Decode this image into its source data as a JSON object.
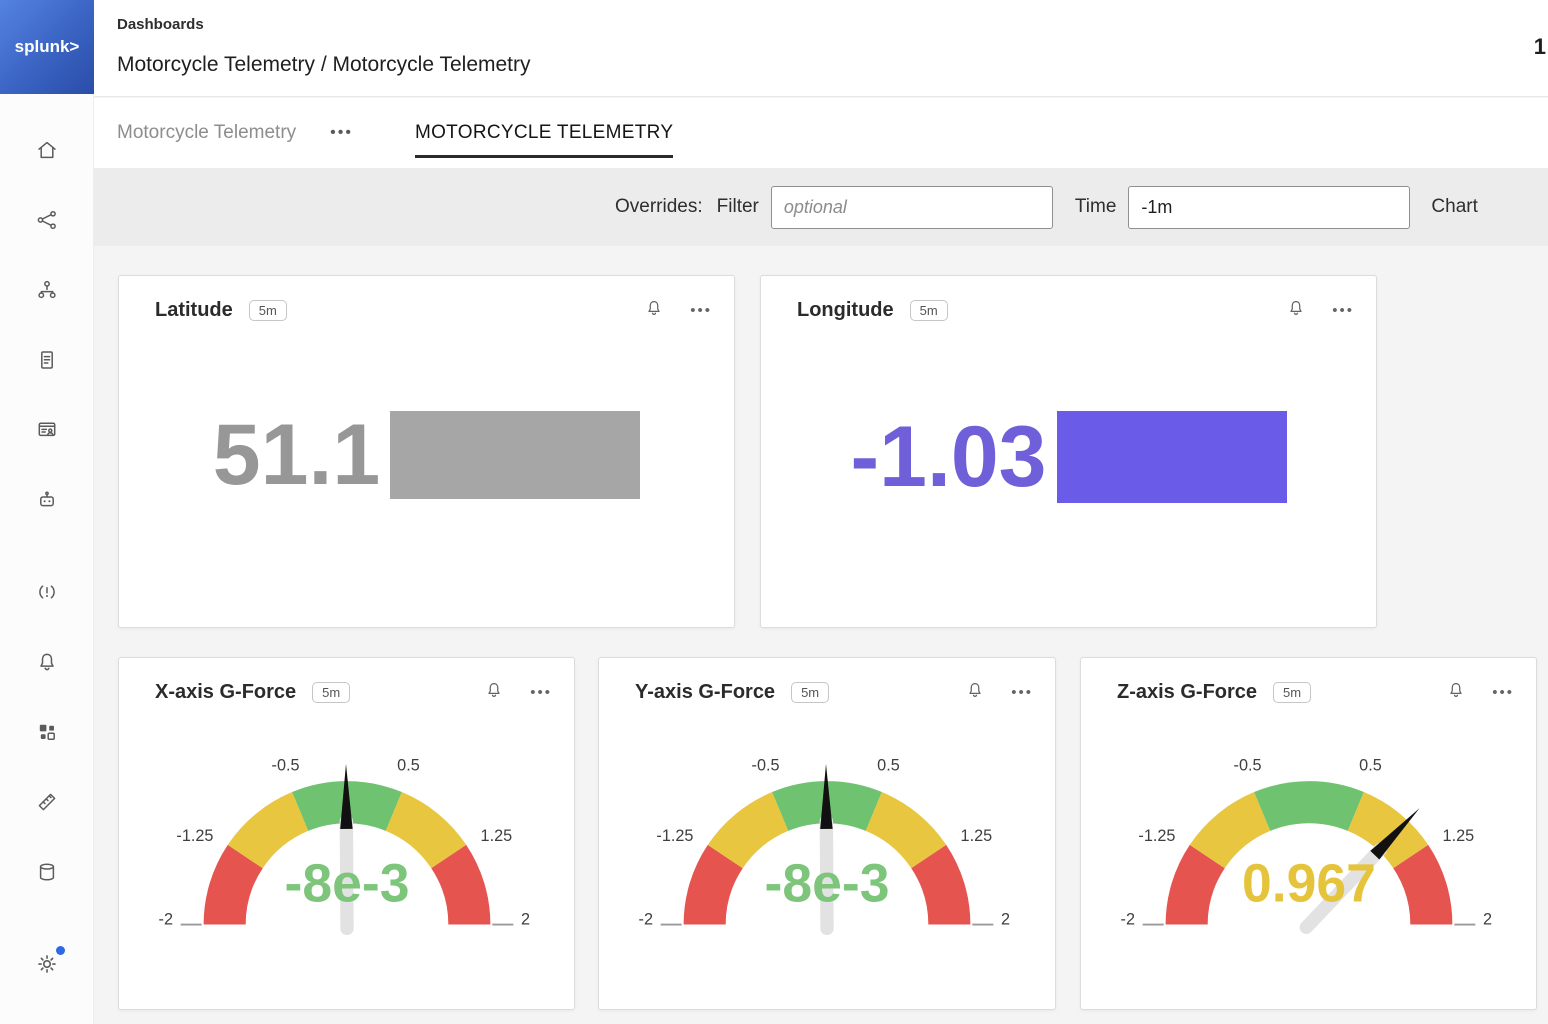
{
  "brand": {
    "logo": "splunk>"
  },
  "header": {
    "breadcrumb": "Dashboards",
    "title": "Motorcycle Telemetry / Motorcycle Telemetry",
    "corner": "1"
  },
  "tabs": {
    "dashboard_name": "Motorcycle Telemetry",
    "menu_ellipsis": "•••",
    "active_tab": "MOTORCYCLE TELEMETRY"
  },
  "overrides": {
    "label": "Overrides:",
    "filter_label": "Filter",
    "filter_placeholder": "optional",
    "time_label": "Time",
    "time_value": "-1m",
    "chart_label": "Chart"
  },
  "sidebar": {
    "icons": [
      "home-icon",
      "data-stream-icon",
      "hierarchy-icon",
      "report-icon",
      "dashboard-user-icon",
      "automation-icon",
      "alert-icon",
      "bell-icon",
      "apps-grid-icon",
      "ruler-icon",
      "storage-icon",
      "settings-gear-icon"
    ]
  },
  "ui": {
    "ellipsis": "•••"
  },
  "cards": {
    "latitude": {
      "title": "Latitude",
      "refresh": "5m",
      "value": "51.1",
      "value_color": "#979797",
      "block_color": "#a6a6a6"
    },
    "longitude": {
      "title": "Longitude",
      "refresh": "5m",
      "value": "-1.03",
      "value_color": "#6f5fd8",
      "block_color": "#6a5ce8"
    }
  },
  "gauge_config": {
    "min": -2,
    "max": 2,
    "segments": [
      {
        "from": -2,
        "to": -1.25,
        "color": "#E6544F"
      },
      {
        "from": -1.25,
        "to": -0.5,
        "color": "#E9C63F"
      },
      {
        "from": -0.5,
        "to": 0.5,
        "color": "#6FC26F"
      },
      {
        "from": 0.5,
        "to": 1.25,
        "color": "#E9C63F"
      },
      {
        "from": 1.25,
        "to": 2,
        "color": "#E6544F"
      }
    ],
    "ticks": [
      {
        "value": -2,
        "label": "-2"
      },
      {
        "value": -1.25,
        "label": "-1.25"
      },
      {
        "value": -0.5,
        "label": "-0.5"
      },
      {
        "value": 0.5,
        "label": "0.5"
      },
      {
        "value": 1.25,
        "label": "1.25"
      },
      {
        "value": 2,
        "label": "2"
      }
    ]
  },
  "gauges": [
    {
      "title": "X-axis G-Force",
      "refresh": "5m",
      "value": -0.008,
      "display": "-8e-3",
      "value_color": "#7CC57A"
    },
    {
      "title": "Y-axis G-Force",
      "refresh": "5m",
      "value": -0.008,
      "display": "-8e-3",
      "value_color": "#7CC57A"
    },
    {
      "title": "Z-axis G-Force",
      "refresh": "5m",
      "value": 0.967,
      "display": "0.967",
      "value_color": "#E5C43C"
    }
  ],
  "chart_data": [
    {
      "type": "single-value",
      "title": "Latitude",
      "refresh": "5m",
      "value": "51.1",
      "covered_block": true,
      "block_color": "#a6a6a6"
    },
    {
      "type": "single-value",
      "title": "Longitude",
      "refresh": "5m",
      "value": "-1.03",
      "covered_block": true,
      "block_color": "#6a5ce8"
    },
    {
      "type": "gauge",
      "title": "X-axis G-Force",
      "refresh": "5m",
      "value": -0.008,
      "display": "-8e-3",
      "min": -2,
      "max": 2,
      "tick_values": [
        -2,
        -1.25,
        -0.5,
        0.5,
        1.25,
        2
      ],
      "ranges": [
        {
          "from": -2,
          "to": -1.25,
          "band": "red"
        },
        {
          "from": -1.25,
          "to": -0.5,
          "band": "yellow"
        },
        {
          "from": -0.5,
          "to": 0.5,
          "band": "green"
        },
        {
          "from": 0.5,
          "to": 1.25,
          "band": "yellow"
        },
        {
          "from": 1.25,
          "to": 2,
          "band": "red"
        }
      ]
    },
    {
      "type": "gauge",
      "title": "Y-axis G-Force",
      "refresh": "5m",
      "value": -0.008,
      "display": "-8e-3",
      "min": -2,
      "max": 2,
      "tick_values": [
        -2,
        -1.25,
        -0.5,
        0.5,
        1.25,
        2
      ],
      "ranges": [
        {
          "from": -2,
          "to": -1.25,
          "band": "red"
        },
        {
          "from": -1.25,
          "to": -0.5,
          "band": "yellow"
        },
        {
          "from": -0.5,
          "to": 0.5,
          "band": "green"
        },
        {
          "from": 0.5,
          "to": 1.25,
          "band": "yellow"
        },
        {
          "from": 1.25,
          "to": 2,
          "band": "red"
        }
      ]
    },
    {
      "type": "gauge",
      "title": "Z-axis G-Force",
      "refresh": "5m",
      "value": 0.967,
      "display": "0.967",
      "min": -2,
      "max": 2,
      "tick_values": [
        -2,
        -1.25,
        -0.5,
        0.5,
        1.25,
        2
      ],
      "ranges": [
        {
          "from": -2,
          "to": -1.25,
          "band": "red"
        },
        {
          "from": -1.25,
          "to": -0.5,
          "band": "yellow"
        },
        {
          "from": -0.5,
          "to": 0.5,
          "band": "green"
        },
        {
          "from": 0.5,
          "to": 1.25,
          "band": "yellow"
        },
        {
          "from": 1.25,
          "to": 2,
          "band": "red"
        }
      ]
    }
  ]
}
